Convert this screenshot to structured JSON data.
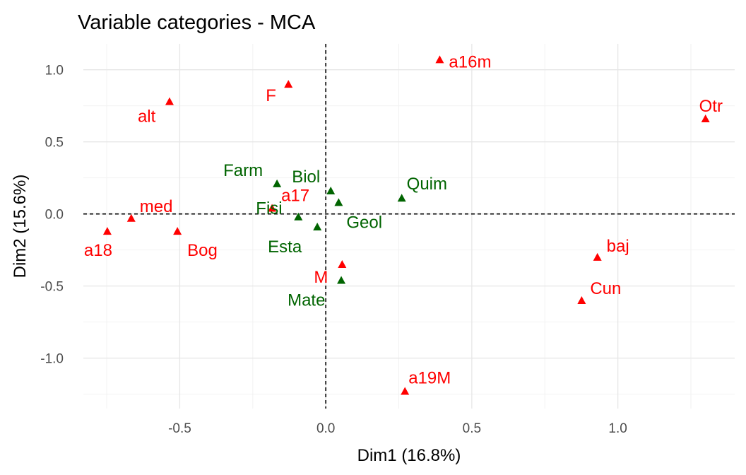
{
  "chart_data": {
    "type": "scatter",
    "title": "Variable categories - MCA",
    "xlabel": "Dim1 (16.8%)",
    "ylabel": "Dim2 (15.6%)",
    "xlim": [
      -0.83,
      1.4
    ],
    "ylim": [
      -1.35,
      1.18
    ],
    "x_ticks": [
      -0.5,
      0.0,
      0.5,
      1.0
    ],
    "x_tick_labels": [
      "-0.5",
      "0.0",
      "0.5",
      "1.0"
    ],
    "y_ticks": [
      -1.0,
      -0.5,
      0.0,
      0.5,
      1.0
    ],
    "y_tick_labels": [
      "-1.0",
      "-0.5",
      "0.0",
      "0.5",
      "1.0"
    ],
    "grid": true,
    "reference_lines": {
      "x": 0,
      "y": 0
    },
    "colors": {
      "variable_a": "#FF0000",
      "variable_b": "#006400"
    },
    "points": [
      {
        "label": "a16m",
        "x": 0.39,
        "y": 1.07,
        "group": "variable_a"
      },
      {
        "label": "Otr",
        "x": 1.3,
        "y": 0.66,
        "group": "variable_a"
      },
      {
        "label": "alt",
        "x": -0.535,
        "y": 0.78,
        "group": "variable_a"
      },
      {
        "label": "F",
        "x": -0.128,
        "y": 0.9,
        "group": "variable_a"
      },
      {
        "label": "Farm",
        "x": -0.167,
        "y": 0.21,
        "group": "variable_b"
      },
      {
        "label": "Biol",
        "x": 0.017,
        "y": 0.16,
        "group": "variable_b"
      },
      {
        "label": "Geol",
        "x": 0.044,
        "y": 0.08,
        "group": "variable_b"
      },
      {
        "label": "Quim",
        "x": 0.26,
        "y": 0.11,
        "group": "variable_b"
      },
      {
        "label": "a17",
        "x": -0.184,
        "y": 0.04,
        "group": "variable_a"
      },
      {
        "label": "Fisi",
        "x": -0.094,
        "y": -0.02,
        "group": "variable_b"
      },
      {
        "label": "Esta",
        "x": -0.029,
        "y": -0.09,
        "group": "variable_b"
      },
      {
        "label": "med",
        "x": -0.666,
        "y": -0.03,
        "group": "variable_a"
      },
      {
        "label": "a18",
        "x": -0.748,
        "y": -0.12,
        "group": "variable_a"
      },
      {
        "label": "Bog",
        "x": -0.508,
        "y": -0.12,
        "group": "variable_a"
      },
      {
        "label": "M",
        "x": 0.056,
        "y": -0.35,
        "group": "variable_a"
      },
      {
        "label": "Mate",
        "x": 0.053,
        "y": -0.46,
        "group": "variable_b"
      },
      {
        "label": "baj",
        "x": 0.93,
        "y": -0.3,
        "group": "variable_a"
      },
      {
        "label": "Cun",
        "x": 0.876,
        "y": -0.6,
        "group": "variable_a"
      },
      {
        "label": "a19M",
        "x": 0.271,
        "y": -1.23,
        "group": "variable_a"
      }
    ]
  }
}
